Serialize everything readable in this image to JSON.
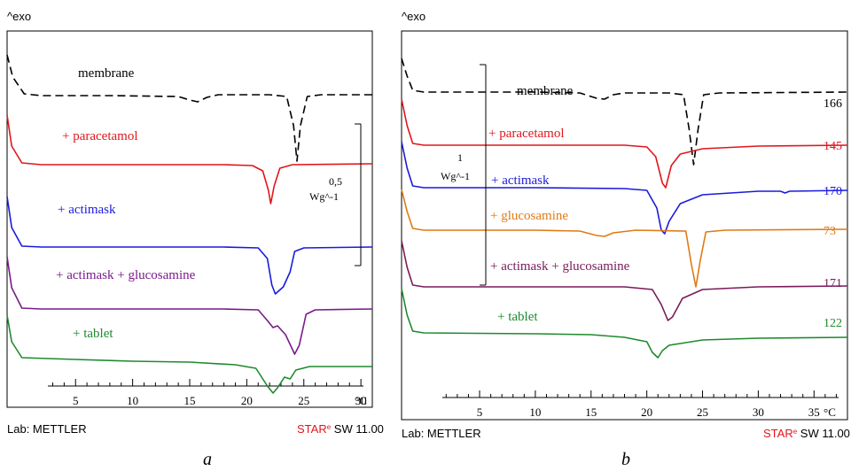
{
  "colors": {
    "membrane": "#000000",
    "paracetamol": "#e0161b",
    "actimask": "#1a1adc",
    "actimask_glucosamine": "#7a1a5a",
    "actimask_glucosamine_a": "#7a1a8c",
    "tablet": "#1e8a2e",
    "glucosamine": "#e07a14",
    "star_red": "#e0161b",
    "axis": "#000000"
  },
  "chart_data": [
    {
      "type": "line",
      "panel_caption": "a",
      "exo_label": "^exo",
      "x_unit": "°C",
      "xlim": [
        -1,
        31
      ],
      "x_ticks": [
        5,
        10,
        15,
        20,
        25,
        30
      ],
      "footer_left": "Lab: METTLER",
      "footer_right_star": "STAR",
      "footer_right_e": "e",
      "footer_right_sw": " SW 11.00",
      "scale_bar": {
        "value": "0,5",
        "unit": "Wg^-1"
      },
      "series": [
        {
          "name": "membrane",
          "style": "dashed",
          "color": "membrane",
          "points": [
            [
              -1,
              0
            ],
            [
              -0.5,
              -25
            ],
            [
              0.5,
              -44
            ],
            [
              2,
              -46
            ],
            [
              8,
              -46
            ],
            [
              14,
              -47
            ],
            [
              15,
              -51
            ],
            [
              15.7,
              -53
            ],
            [
              16.5,
              -48
            ],
            [
              17.5,
              -45
            ],
            [
              22,
              -45
            ],
            [
              23.5,
              -47
            ],
            [
              24.1,
              -80
            ],
            [
              24.4,
              -120
            ],
            [
              24.7,
              -80
            ],
            [
              25.3,
              -47
            ],
            [
              26.5,
              -45
            ],
            [
              31,
              -45
            ]
          ]
        },
        {
          "name": "+ paracetamol",
          "color": "paracetamol",
          "points": [
            [
              -1,
              0
            ],
            [
              -0.6,
              -35
            ],
            [
              0.3,
              -54
            ],
            [
              2,
              -56
            ],
            [
              10,
              -56
            ],
            [
              18,
              -56
            ],
            [
              20.5,
              -57
            ],
            [
              21.4,
              -63
            ],
            [
              21.9,
              -85
            ],
            [
              22.1,
              -100
            ],
            [
              22.4,
              -80
            ],
            [
              22.9,
              -60
            ],
            [
              24,
              -56
            ],
            [
              31,
              -55
            ]
          ]
        },
        {
          "name": "+ actimask",
          "color": "actimask",
          "points": [
            [
              -1,
              0
            ],
            [
              -0.6,
              -35
            ],
            [
              0.3,
              -56
            ],
            [
              2,
              -57
            ],
            [
              10,
              -57
            ],
            [
              18,
              -57
            ],
            [
              21,
              -58
            ],
            [
              21.8,
              -70
            ],
            [
              22.2,
              -100
            ],
            [
              22.5,
              -110
            ],
            [
              23.2,
              -102
            ],
            [
              23.8,
              -85
            ],
            [
              24.2,
              -62
            ],
            [
              25,
              -58
            ],
            [
              31,
              -57
            ]
          ]
        },
        {
          "name": "+ actimask + glucosamine",
          "color": "actimask_glucosamine_a",
          "points": [
            [
              -1,
              0
            ],
            [
              -0.6,
              -35
            ],
            [
              0.3,
              -58
            ],
            [
              2,
              -59
            ],
            [
              10,
              -59
            ],
            [
              18,
              -59
            ],
            [
              21,
              -60
            ],
            [
              21.8,
              -72
            ],
            [
              22.3,
              -80
            ],
            [
              22.7,
              -78
            ],
            [
              23.4,
              -88
            ],
            [
              24.2,
              -110
            ],
            [
              24.6,
              -100
            ],
            [
              25.2,
              -65
            ],
            [
              26,
              -60
            ],
            [
              31,
              -59
            ]
          ]
        },
        {
          "name": "+ tablet",
          "color": "tablet",
          "points": [
            [
              -1,
              0
            ],
            [
              -0.6,
              -30
            ],
            [
              0.3,
              -48
            ],
            [
              5,
              -50
            ],
            [
              10,
              -52
            ],
            [
              15,
              -53
            ],
            [
              19,
              -56
            ],
            [
              20.8,
              -60
            ],
            [
              21.8,
              -80
            ],
            [
              22.3,
              -88
            ],
            [
              22.7,
              -82
            ],
            [
              23.3,
              -70
            ],
            [
              23.8,
              -72
            ],
            [
              24.3,
              -62
            ],
            [
              25.5,
              -58
            ],
            [
              31,
              -58
            ]
          ]
        }
      ],
      "labels": [
        "membrane",
        "+ paracetamol",
        "+ actimask",
        "+ actimask + glucosamine",
        "+ tablet"
      ]
    },
    {
      "type": "line",
      "panel_caption": "b",
      "exo_label": "^exo",
      "x_unit": "°C",
      "xlim": [
        -2,
        38
      ],
      "x_ticks": [
        5,
        10,
        15,
        20,
        25,
        30,
        35
      ],
      "footer_left": "Lab: METTLER",
      "footer_right_star": "STAR",
      "footer_right_e": "e",
      "footer_right_sw": " SW 11.00",
      "scale_bar": {
        "value": "1",
        "unit": "Wg^-1"
      },
      "series": [
        {
          "name": "membrane",
          "style": "dashed",
          "color": "membrane",
          "end_label": "166",
          "points": [
            [
              -2,
              0
            ],
            [
              -1.5,
              -20
            ],
            [
              -1,
              -36
            ],
            [
              0,
              -38
            ],
            [
              10,
              -38
            ],
            [
              14,
              -39
            ],
            [
              15.5,
              -45
            ],
            [
              16.2,
              -46
            ],
            [
              17,
              -41
            ],
            [
              18,
              -39
            ],
            [
              22,
              -39
            ],
            [
              23.3,
              -41
            ],
            [
              23.8,
              -80
            ],
            [
              24.2,
              -120
            ],
            [
              24.6,
              -80
            ],
            [
              25.1,
              -41
            ],
            [
              26.5,
              -39
            ],
            [
              38,
              -38
            ]
          ]
        },
        {
          "name": "+ paracetamol",
          "color": "paracetamol",
          "end_label": "145",
          "points": [
            [
              -2,
              0
            ],
            [
              -1.5,
              -30
            ],
            [
              -1,
              -50
            ],
            [
              0,
              -52
            ],
            [
              10,
              -52
            ],
            [
              18,
              -52
            ],
            [
              20,
              -54
            ],
            [
              20.8,
              -65
            ],
            [
              21.4,
              -95
            ],
            [
              21.7,
              -100
            ],
            [
              22.2,
              -75
            ],
            [
              23,
              -62
            ],
            [
              25,
              -56
            ],
            [
              30,
              -53
            ],
            [
              38,
              -52
            ]
          ]
        },
        {
          "name": "+ actimask",
          "color": "actimask",
          "end_label": "170",
          "points": [
            [
              -2,
              0
            ],
            [
              -1.5,
              -30
            ],
            [
              -1,
              -50
            ],
            [
              0,
              -52
            ],
            [
              10,
              -52
            ],
            [
              18,
              -53
            ],
            [
              20,
              -55
            ],
            [
              20.9,
              -75
            ],
            [
              21.3,
              -100
            ],
            [
              21.6,
              -104
            ],
            [
              22,
              -90
            ],
            [
              23,
              -70
            ],
            [
              25,
              -60
            ],
            [
              30,
              -56
            ],
            [
              32,
              -56
            ],
            [
              32.4,
              -58
            ],
            [
              32.8,
              -56
            ],
            [
              38,
              -55
            ]
          ]
        },
        {
          "name": "+ glucosamine",
          "color": "glucosamine",
          "end_label": "73",
          "points": [
            [
              -2,
              0
            ],
            [
              -1.5,
              -25
            ],
            [
              -1,
              -44
            ],
            [
              0,
              -46
            ],
            [
              10,
              -46
            ],
            [
              14,
              -47
            ],
            [
              15.5,
              -52
            ],
            [
              16.2,
              -53
            ],
            [
              17,
              -49
            ],
            [
              19,
              -46
            ],
            [
              23.5,
              -47
            ],
            [
              24,
              -85
            ],
            [
              24.4,
              -110
            ],
            [
              24.8,
              -80
            ],
            [
              25.3,
              -48
            ],
            [
              27,
              -46
            ],
            [
              38,
              -45
            ]
          ]
        },
        {
          "name": "+ actimask + glucosamine",
          "color": "actimask_glucosamine",
          "end_label": "171",
          "points": [
            [
              -2,
              0
            ],
            [
              -1.5,
              -30
            ],
            [
              -1,
              -50
            ],
            [
              0,
              -52
            ],
            [
              10,
              -52
            ],
            [
              18,
              -52
            ],
            [
              20.5,
              -55
            ],
            [
              21.3,
              -72
            ],
            [
              21.9,
              -90
            ],
            [
              22.3,
              -86
            ],
            [
              23.2,
              -65
            ],
            [
              25,
              -55
            ],
            [
              30,
              -52
            ],
            [
              38,
              -51
            ]
          ]
        },
        {
          "name": "+ tablet",
          "color": "tablet",
          "end_label": "122",
          "points": [
            [
              -2,
              0
            ],
            [
              -1.5,
              -30
            ],
            [
              -1,
              -48
            ],
            [
              0,
              -50
            ],
            [
              10,
              -51
            ],
            [
              15,
              -52
            ],
            [
              18,
              -55
            ],
            [
              20,
              -60
            ],
            [
              20.5,
              -72
            ],
            [
              21,
              -78
            ],
            [
              21.4,
              -70
            ],
            [
              22,
              -64
            ],
            [
              23,
              -62
            ],
            [
              24,
              -60
            ],
            [
              25,
              -58
            ],
            [
              30,
              -56
            ],
            [
              38,
              -55
            ]
          ]
        }
      ],
      "labels": [
        "membrane",
        "+ paracetamol",
        "+ actimask",
        "+ glucosamine",
        "+ actimask + glucosamine",
        "+ tablet"
      ]
    }
  ]
}
